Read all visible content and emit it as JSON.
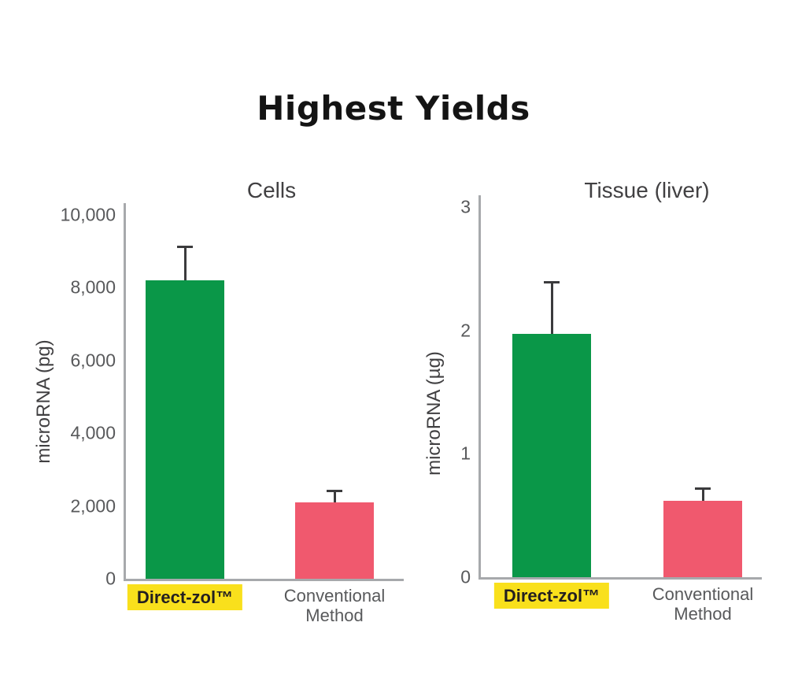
{
  "page": {
    "title": "Highest Yields"
  },
  "colors": {
    "direct_zol": "#0a9748",
    "conventional": "#f0596e",
    "highlight": "#f9e01c",
    "axis": "#a7a9ac",
    "tick_text": "#58595b",
    "label_text": "#414042",
    "error": "#3b3b3d",
    "title_text": "#141414"
  },
  "chart_data": [
    {
      "type": "bar",
      "title": "Cells",
      "ylabel": "microRNA (pg)",
      "ylim": [
        0,
        10000
      ],
      "grid": false,
      "yticks": [
        {
          "value": 10000,
          "label": "10,000"
        },
        {
          "value": 8000,
          "label": "8,000"
        },
        {
          "value": 6000,
          "label": "6,000"
        },
        {
          "value": 4000,
          "label": "4,000"
        },
        {
          "value": 2000,
          "label": "2,000"
        },
        {
          "value": 0,
          "label": "0"
        }
      ],
      "categories": [
        "Direct-zol™",
        "Conventional Method"
      ],
      "bars": [
        {
          "category": "Direct-zol™",
          "value": 8200,
          "error_plus": 950,
          "color": "direct_zol",
          "highlighted": true
        },
        {
          "category": "Conventional Method",
          "value": 2100,
          "error_plus": 350,
          "color": "conventional",
          "highlighted": false
        }
      ]
    },
    {
      "type": "bar",
      "title": "Tissue (liver)",
      "ylabel": "microRNA (µg)",
      "ylim": [
        0,
        3
      ],
      "grid": false,
      "yticks": [
        {
          "value": 3,
          "label": "3"
        },
        {
          "value": 2,
          "label": "2"
        },
        {
          "value": 1,
          "label": "1"
        },
        {
          "value": 0,
          "label": "0"
        }
      ],
      "categories": [
        "Direct-zol™",
        "Conventional Method"
      ],
      "bars": [
        {
          "category": "Direct-zol™",
          "value": 1.97,
          "error_plus": 0.43,
          "color": "direct_zol",
          "highlighted": true
        },
        {
          "category": "Conventional Method",
          "value": 0.62,
          "error_plus": 0.11,
          "color": "conventional",
          "highlighted": false
        }
      ]
    }
  ]
}
